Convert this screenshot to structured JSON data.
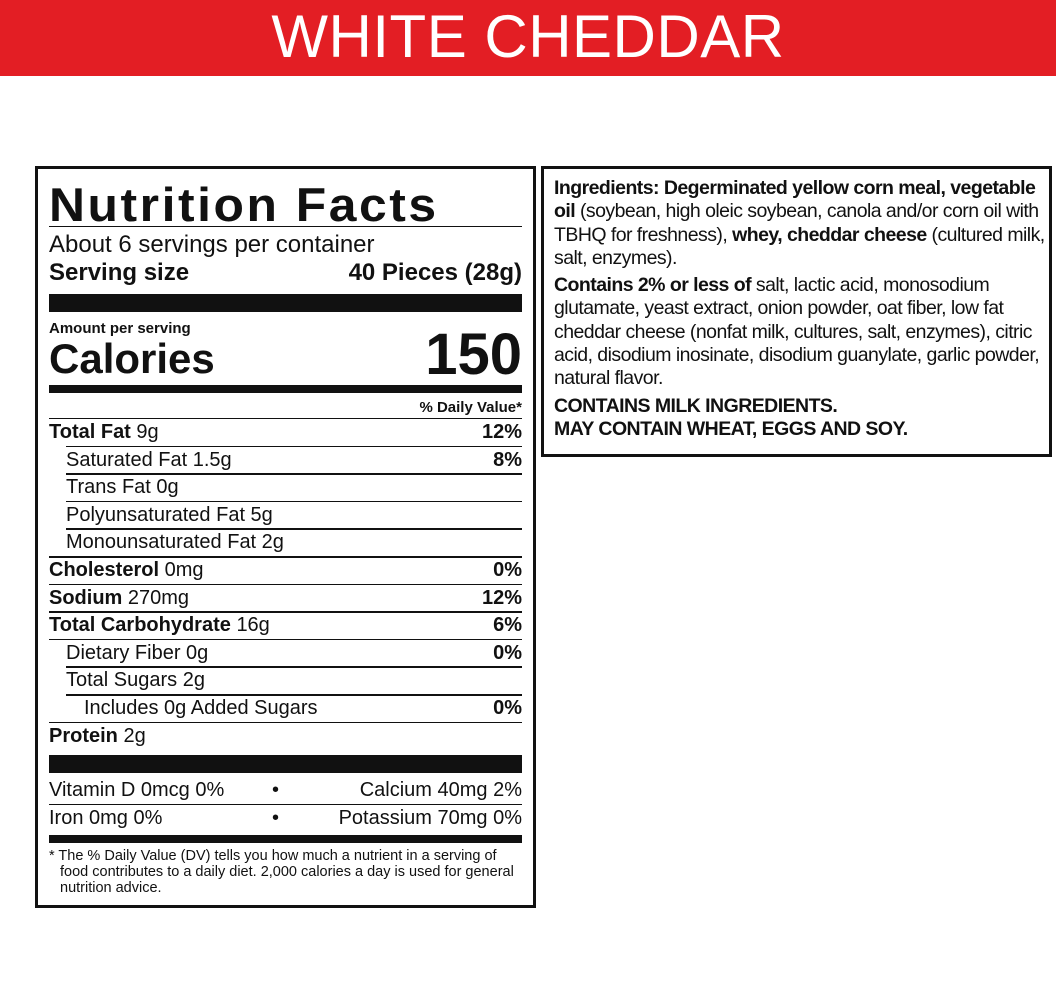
{
  "banner": {
    "title": "WHITE CHEDDAR",
    "color": "#e31e24"
  },
  "nutrition": {
    "title": "Nutrition Facts",
    "servings_per_container": "About 6 servings per container",
    "serving_size_label": "Serving size",
    "serving_size_value": "40 Pieces (28g)",
    "amount_per_serving": "Amount per serving",
    "calories_label": "Calories",
    "calories_value": "150",
    "dv_header": "% Daily Value*",
    "rows": [
      {
        "name": "Total Fat",
        "amount": "9g",
        "dv": "12%"
      },
      {
        "name": "Saturated Fat 1.5g",
        "amount": "",
        "dv": "8%"
      },
      {
        "name": "Trans Fat 0g",
        "amount": "",
        "dv": ""
      },
      {
        "name": "Polyunsaturated Fat 5g",
        "amount": "",
        "dv": ""
      },
      {
        "name": "Monounsaturated Fat 2g",
        "amount": "",
        "dv": ""
      },
      {
        "name": "Cholesterol",
        "amount": "0mg",
        "dv": "0%"
      },
      {
        "name": "Sodium",
        "amount": "270mg",
        "dv": "12%"
      },
      {
        "name": "Total Carbohydrate",
        "amount": "16g",
        "dv": "6%"
      },
      {
        "name": "Dietary Fiber 0g",
        "amount": "",
        "dv": "0%"
      },
      {
        "name": "Total Sugars 2g",
        "amount": "",
        "dv": ""
      },
      {
        "name": "Includes 0g Added Sugars",
        "amount": "",
        "dv": "0%"
      },
      {
        "name": "Protein",
        "amount": "2g",
        "dv": ""
      }
    ],
    "vitamins": [
      {
        "left": "Vitamin D 0mcg 0%",
        "right": "Calcium 40mg 2%"
      },
      {
        "left": "Iron 0mg 0%",
        "right": "Potassium 70mg 0%"
      }
    ],
    "bullet": "•",
    "footnote": "* The % Daily Value (DV) tells you how much a nutrient in a serving of food contributes to a daily diet. 2,000 calories a day is used for general nutrition advice."
  },
  "ingredients": {
    "p1_b1": "Ingredients: Degerminated yellow corn meal, vegetable oil",
    "p1_t1": " (soybean, high oleic soybean, canola and/or corn oil with TBHQ for freshness), ",
    "p1_b2": "whey, cheddar cheese",
    "p1_t2": " (cultured milk, salt, enzymes).",
    "p2_b": "Contains 2% or less of",
    "p2_t": " salt, lactic acid, monosodium glutamate, yeast extract, onion powder, oat fiber, low fat cheddar cheese (nonfat milk, cultures, salt, enzymes), citric acid, disodium inosinate, disodium guanylate, garlic powder, natural flavor.",
    "allergen1": "CONTAINS MILK INGREDIENTS.",
    "allergen2": "MAY CONTAIN WHEAT, EGGS AND SOY."
  }
}
